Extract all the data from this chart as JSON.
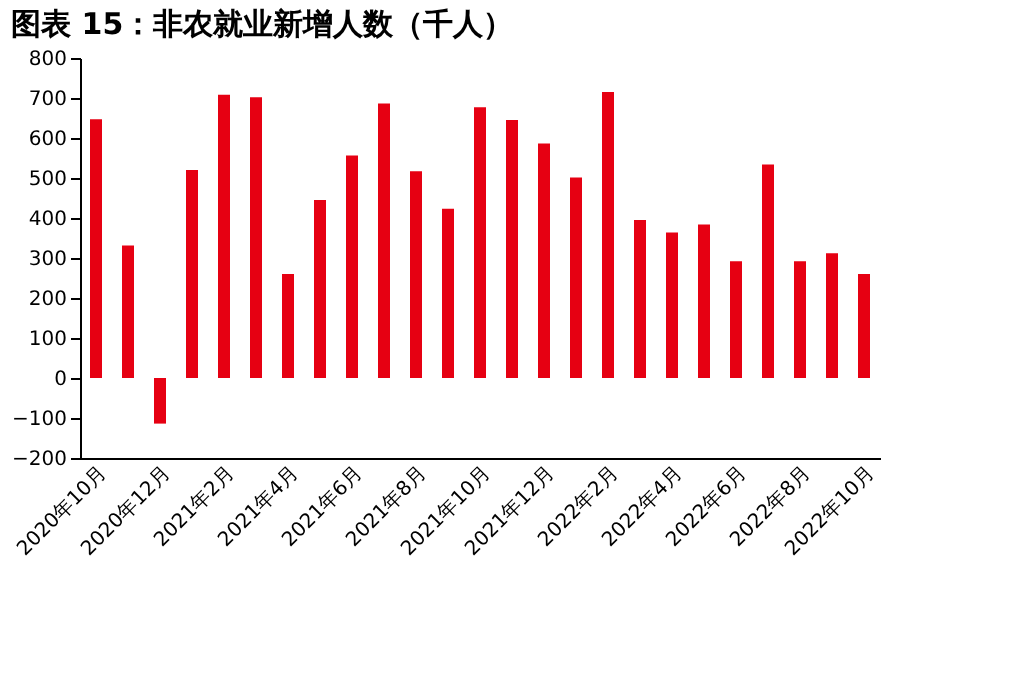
{
  "chart_data": {
    "type": "bar",
    "title": "图表 15：非农就业新增人数（千人）",
    "categories": [
      "2020年10月",
      null,
      "2020年12月",
      null,
      "2021年2月",
      null,
      "2021年4月",
      null,
      "2021年6月",
      null,
      "2021年8月",
      null,
      "2021年10月",
      null,
      "2021年12月",
      null,
      "2022年2月",
      null,
      "2022年4月",
      null,
      "2022年6月",
      null,
      "2022年8月",
      null,
      "2022年10月"
    ],
    "values": [
      647,
      331,
      -114,
      520,
      708,
      702,
      260,
      445,
      556,
      686,
      517,
      423,
      677,
      645,
      586,
      501,
      715,
      395,
      364,
      384,
      292,
      534,
      292,
      312,
      260
    ],
    "color": "#e60012",
    "ylim": [
      -200,
      800
    ],
    "yticks": [
      -200,
      -100,
      0,
      100,
      200,
      300,
      400,
      500,
      600,
      700,
      800
    ],
    "grid": false
  }
}
